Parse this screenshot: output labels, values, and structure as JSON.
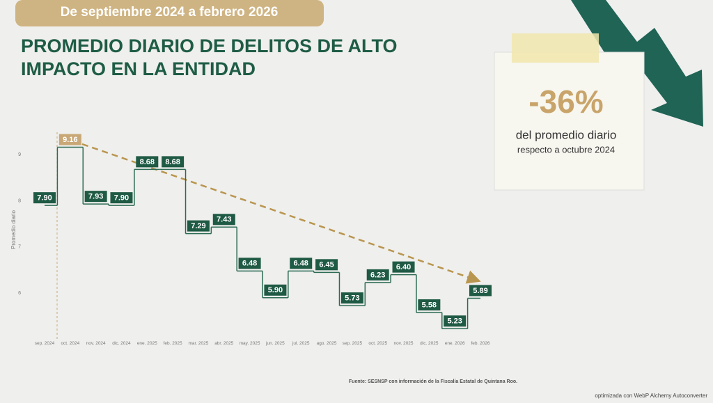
{
  "header": "De septiembre 2024 a febrero 2026",
  "title_lines": [
    "PROMEDIO DIARIO DE DELITOS DE ALTO",
    "IMPACTO EN LA ENTIDAD"
  ],
  "callout": {
    "value": "-36%",
    "line1": "del promedio diario",
    "line2": "respecto a octubre 2024"
  },
  "source": "Fuente: SESNSP con información de la Fiscalía Estatal de Quintana Roo.",
  "watermark": "optimizada con WebP Alchemy Autoconverter",
  "chart_data": {
    "type": "step",
    "y_label": "Promedio diario",
    "categories": [
      "sep. 2024",
      "oct. 2024",
      "nov. 2024",
      "dic. 2024",
      "ene. 2025",
      "feb. 2025",
      "mar. 2025",
      "abr. 2025",
      "may. 2025",
      "jun. 2025",
      "jul. 2025",
      "ago. 2025",
      "sep. 2025",
      "oct. 2025",
      "nov. 2025",
      "dic. 2025",
      "ene. 2026",
      "feb. 2026"
    ],
    "values": [
      7.9,
      9.16,
      7.93,
      7.9,
      8.68,
      8.68,
      7.29,
      7.43,
      6.48,
      5.9,
      6.48,
      6.45,
      5.73,
      6.23,
      6.4,
      5.58,
      5.23,
      5.89
    ],
    "value_labels": [
      "7.90",
      "9.16",
      "7.93",
      "7.90",
      "8.68",
      "8.68",
      "7.29",
      "7.43",
      "6.48",
      "5.90",
      "6.48",
      "6.45",
      "5.73",
      "6.23",
      "6.40",
      "5.58",
      "5.23",
      "5.89"
    ],
    "ylim": [
      5,
      9.5
    ],
    "yticks": [
      6,
      7,
      8,
      9
    ],
    "color": "#2d6b55",
    "label_color": "#1f5a45",
    "highlight": {
      "index": 1,
      "color": "#c9a877"
    }
  }
}
